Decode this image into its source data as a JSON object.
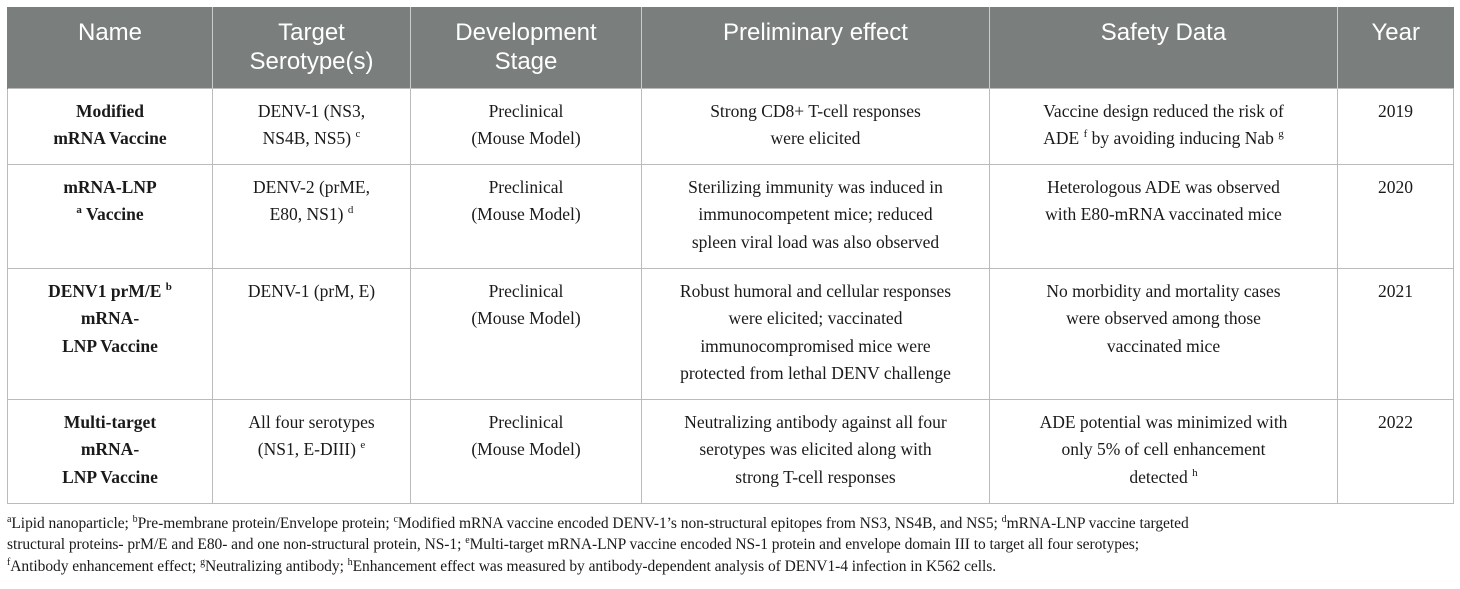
{
  "table": {
    "headers": [
      [
        "Name"
      ],
      [
        "Target",
        "Serotype(s)"
      ],
      [
        "Development",
        "Stage"
      ],
      [
        "Preliminary effect"
      ],
      [
        "Safety Data"
      ],
      [
        "Year"
      ]
    ],
    "rows": [
      {
        "name": [
          "Modified",
          "mRNA Vaccine"
        ],
        "target": [
          "DENV-1 (NS3,",
          "NS4B, NS5)"
        ],
        "target_sup": "c",
        "stage": [
          "Preclinical",
          "(Mouse Model)"
        ],
        "effect": [
          "Strong CD8+ T-cell responses",
          "were elicited"
        ],
        "safety_a": "Vaccine design reduced the risk of",
        "safety_b_pre": "ADE",
        "safety_b_sup1": "f",
        "safety_b_mid": "by avoiding inducing Nab",
        "safety_b_sup2": "g",
        "year": "2019"
      },
      {
        "name_a": "mRNA-LNP",
        "name_sup": "a",
        "name_b": "Vaccine",
        "target": [
          "DENV-2 (prME,",
          "E80, NS1)"
        ],
        "target_sup": "d",
        "stage": [
          "Preclinical",
          "(Mouse Model)"
        ],
        "effect": [
          "Sterilizing immunity was induced in",
          "immunocompetent mice; reduced",
          "spleen viral load was also observed"
        ],
        "safety": [
          "Heterologous ADE was observed",
          "with E80-mRNA vaccinated mice"
        ],
        "year": "2020"
      },
      {
        "name_a": "DENV1 prM/E",
        "name_sup": "b",
        "name": [
          "mRNA-",
          "LNP Vaccine"
        ],
        "target": [
          "DENV-1 (prM, E)"
        ],
        "stage": [
          "Preclinical",
          "(Mouse Model)"
        ],
        "effect": [
          "Robust humoral and cellular responses",
          "were elicited; vaccinated",
          "immunocompromised mice were",
          "protected from lethal DENV challenge"
        ],
        "safety": [
          "No morbidity and mortality cases",
          "were observed among those",
          "vaccinated mice"
        ],
        "year": "2021"
      },
      {
        "name": [
          "Multi-target",
          "mRNA-",
          "LNP Vaccine"
        ],
        "target": [
          "All four serotypes",
          "(NS1, E-DIII)"
        ],
        "target_sup": "e",
        "stage": [
          "Preclinical",
          "(Mouse Model)"
        ],
        "effect": [
          "Neutralizing antibody against all four",
          "serotypes was elicited along with",
          "strong T-cell responses"
        ],
        "safety": [
          "ADE potential was minimized with",
          "only 5% of cell enhancement"
        ],
        "safety_last": "detected",
        "safety_sup": "h",
        "year": "2022"
      }
    ]
  },
  "footnotes": {
    "a_sup": "a",
    "a": "Lipid nanoparticle; ",
    "b_sup": "b",
    "b": "Pre-membrane protein/Envelope protein; ",
    "c_sup": "c",
    "c": "Modified mRNA vaccine encoded DENV-1’s non-structural epitopes from NS3, NS4B, and NS5; ",
    "d_sup": "d",
    "d1": "mRNA-LNP vaccine targeted",
    "d2": "structural proteins- prM/E and E80- and one non-structural protein, NS-1; ",
    "e_sup": "e",
    "e": "Multi-target mRNA-LNP vaccine encoded NS-1 protein and envelope domain III to target all four serotypes;",
    "f_sup": "f",
    "f": "Antibody enhancement effect; ",
    "g_sup": "g",
    "g": "Neutralizing antibody; ",
    "h_sup": "h",
    "h": "Enhancement effect was measured by antibody-dependent analysis of DENV1-4 infection in K562 cells."
  },
  "colors": {
    "header_bg": "#7a7f7e",
    "header_text": "#ffffff",
    "border": "#b9bcbb"
  }
}
